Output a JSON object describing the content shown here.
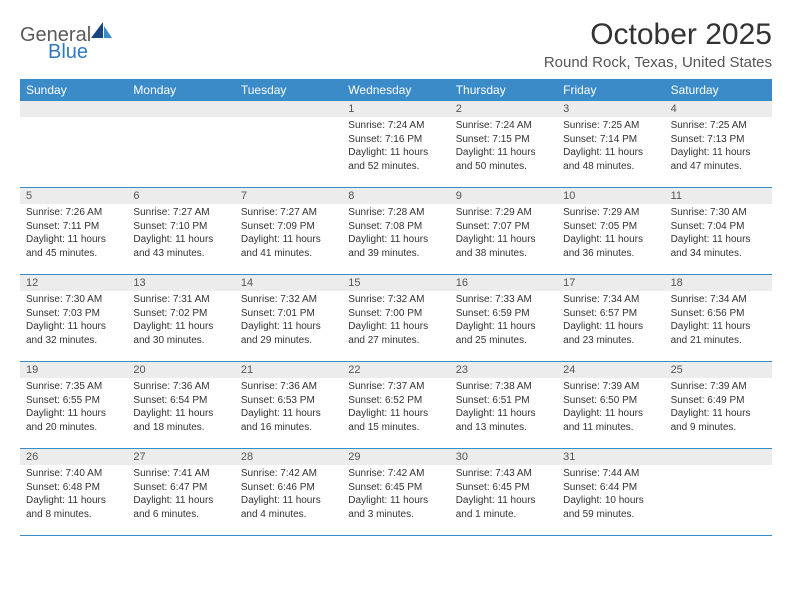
{
  "logo": {
    "general": "General",
    "blue": "Blue"
  },
  "title": "October 2025",
  "location": "Round Rock, Texas, United States",
  "colors": {
    "header_bg": "#3b8bc9",
    "header_text": "#ffffff",
    "daynum_bg": "#ececec",
    "border": "#3b8bc9",
    "text": "#333333",
    "logo_gray": "#5a5a5a",
    "logo_blue": "#2f7abf"
  },
  "day_names": [
    "Sunday",
    "Monday",
    "Tuesday",
    "Wednesday",
    "Thursday",
    "Friday",
    "Saturday"
  ],
  "weeks": [
    [
      {
        "n": "",
        "sr": "",
        "ss": "",
        "dl": ""
      },
      {
        "n": "",
        "sr": "",
        "ss": "",
        "dl": ""
      },
      {
        "n": "",
        "sr": "",
        "ss": "",
        "dl": ""
      },
      {
        "n": "1",
        "sr": "Sunrise: 7:24 AM",
        "ss": "Sunset: 7:16 PM",
        "dl": "Daylight: 11 hours and 52 minutes."
      },
      {
        "n": "2",
        "sr": "Sunrise: 7:24 AM",
        "ss": "Sunset: 7:15 PM",
        "dl": "Daylight: 11 hours and 50 minutes."
      },
      {
        "n": "3",
        "sr": "Sunrise: 7:25 AM",
        "ss": "Sunset: 7:14 PM",
        "dl": "Daylight: 11 hours and 48 minutes."
      },
      {
        "n": "4",
        "sr": "Sunrise: 7:25 AM",
        "ss": "Sunset: 7:13 PM",
        "dl": "Daylight: 11 hours and 47 minutes."
      }
    ],
    [
      {
        "n": "5",
        "sr": "Sunrise: 7:26 AM",
        "ss": "Sunset: 7:11 PM",
        "dl": "Daylight: 11 hours and 45 minutes."
      },
      {
        "n": "6",
        "sr": "Sunrise: 7:27 AM",
        "ss": "Sunset: 7:10 PM",
        "dl": "Daylight: 11 hours and 43 minutes."
      },
      {
        "n": "7",
        "sr": "Sunrise: 7:27 AM",
        "ss": "Sunset: 7:09 PM",
        "dl": "Daylight: 11 hours and 41 minutes."
      },
      {
        "n": "8",
        "sr": "Sunrise: 7:28 AM",
        "ss": "Sunset: 7:08 PM",
        "dl": "Daylight: 11 hours and 39 minutes."
      },
      {
        "n": "9",
        "sr": "Sunrise: 7:29 AM",
        "ss": "Sunset: 7:07 PM",
        "dl": "Daylight: 11 hours and 38 minutes."
      },
      {
        "n": "10",
        "sr": "Sunrise: 7:29 AM",
        "ss": "Sunset: 7:05 PM",
        "dl": "Daylight: 11 hours and 36 minutes."
      },
      {
        "n": "11",
        "sr": "Sunrise: 7:30 AM",
        "ss": "Sunset: 7:04 PM",
        "dl": "Daylight: 11 hours and 34 minutes."
      }
    ],
    [
      {
        "n": "12",
        "sr": "Sunrise: 7:30 AM",
        "ss": "Sunset: 7:03 PM",
        "dl": "Daylight: 11 hours and 32 minutes."
      },
      {
        "n": "13",
        "sr": "Sunrise: 7:31 AM",
        "ss": "Sunset: 7:02 PM",
        "dl": "Daylight: 11 hours and 30 minutes."
      },
      {
        "n": "14",
        "sr": "Sunrise: 7:32 AM",
        "ss": "Sunset: 7:01 PM",
        "dl": "Daylight: 11 hours and 29 minutes."
      },
      {
        "n": "15",
        "sr": "Sunrise: 7:32 AM",
        "ss": "Sunset: 7:00 PM",
        "dl": "Daylight: 11 hours and 27 minutes."
      },
      {
        "n": "16",
        "sr": "Sunrise: 7:33 AM",
        "ss": "Sunset: 6:59 PM",
        "dl": "Daylight: 11 hours and 25 minutes."
      },
      {
        "n": "17",
        "sr": "Sunrise: 7:34 AM",
        "ss": "Sunset: 6:57 PM",
        "dl": "Daylight: 11 hours and 23 minutes."
      },
      {
        "n": "18",
        "sr": "Sunrise: 7:34 AM",
        "ss": "Sunset: 6:56 PM",
        "dl": "Daylight: 11 hours and 21 minutes."
      }
    ],
    [
      {
        "n": "19",
        "sr": "Sunrise: 7:35 AM",
        "ss": "Sunset: 6:55 PM",
        "dl": "Daylight: 11 hours and 20 minutes."
      },
      {
        "n": "20",
        "sr": "Sunrise: 7:36 AM",
        "ss": "Sunset: 6:54 PM",
        "dl": "Daylight: 11 hours and 18 minutes."
      },
      {
        "n": "21",
        "sr": "Sunrise: 7:36 AM",
        "ss": "Sunset: 6:53 PM",
        "dl": "Daylight: 11 hours and 16 minutes."
      },
      {
        "n": "22",
        "sr": "Sunrise: 7:37 AM",
        "ss": "Sunset: 6:52 PM",
        "dl": "Daylight: 11 hours and 15 minutes."
      },
      {
        "n": "23",
        "sr": "Sunrise: 7:38 AM",
        "ss": "Sunset: 6:51 PM",
        "dl": "Daylight: 11 hours and 13 minutes."
      },
      {
        "n": "24",
        "sr": "Sunrise: 7:39 AM",
        "ss": "Sunset: 6:50 PM",
        "dl": "Daylight: 11 hours and 11 minutes."
      },
      {
        "n": "25",
        "sr": "Sunrise: 7:39 AM",
        "ss": "Sunset: 6:49 PM",
        "dl": "Daylight: 11 hours and 9 minutes."
      }
    ],
    [
      {
        "n": "26",
        "sr": "Sunrise: 7:40 AM",
        "ss": "Sunset: 6:48 PM",
        "dl": "Daylight: 11 hours and 8 minutes."
      },
      {
        "n": "27",
        "sr": "Sunrise: 7:41 AM",
        "ss": "Sunset: 6:47 PM",
        "dl": "Daylight: 11 hours and 6 minutes."
      },
      {
        "n": "28",
        "sr": "Sunrise: 7:42 AM",
        "ss": "Sunset: 6:46 PM",
        "dl": "Daylight: 11 hours and 4 minutes."
      },
      {
        "n": "29",
        "sr": "Sunrise: 7:42 AM",
        "ss": "Sunset: 6:45 PM",
        "dl": "Daylight: 11 hours and 3 minutes."
      },
      {
        "n": "30",
        "sr": "Sunrise: 7:43 AM",
        "ss": "Sunset: 6:45 PM",
        "dl": "Daylight: 11 hours and 1 minute."
      },
      {
        "n": "31",
        "sr": "Sunrise: 7:44 AM",
        "ss": "Sunset: 6:44 PM",
        "dl": "Daylight: 10 hours and 59 minutes."
      },
      {
        "n": "",
        "sr": "",
        "ss": "",
        "dl": ""
      }
    ]
  ]
}
